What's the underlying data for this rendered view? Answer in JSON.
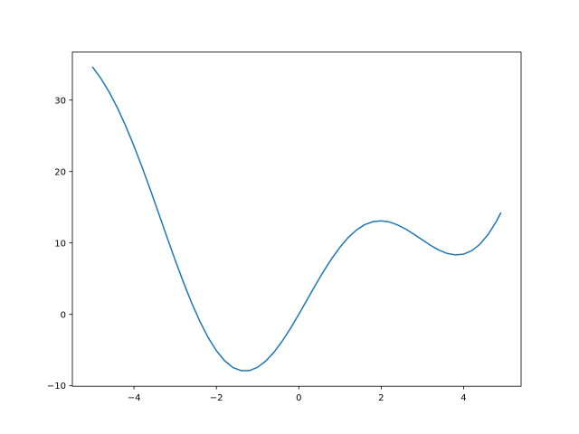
{
  "chart_data": {
    "type": "line",
    "title": "",
    "xlabel": "",
    "ylabel": "",
    "xlim": [
      -5.495,
      5.395
    ],
    "ylim": [
      -10.07,
      36.72
    ],
    "xticks": [
      -4,
      -2,
      0,
      2,
      4
    ],
    "yticks": [
      -10,
      0,
      10,
      20,
      30
    ],
    "xtick_labels": [
      "−4",
      "−2",
      "0",
      "2",
      "4"
    ],
    "ytick_labels": [
      "−10",
      "0",
      "10",
      "20",
      "30"
    ],
    "grid": false,
    "line_color": "#1f77b4",
    "series": [
      {
        "x": [
          -5,
          -4.8,
          -4.6,
          -4.4,
          -4.2,
          -4,
          -3.8,
          -3.6,
          -3.4,
          -3.2,
          -3,
          -2.8,
          -2.6,
          -2.4,
          -2.2,
          -2,
          -1.8,
          -1.6,
          -1.4,
          -1.2,
          -1,
          -0.8,
          -0.6,
          -0.4,
          -0.2,
          0,
          0.2,
          0.4,
          0.6,
          0.8,
          1,
          1.2,
          1.4,
          1.6,
          1.8,
          2,
          2.2,
          2.4,
          2.6,
          2.8,
          3,
          3.2,
          3.4,
          3.6,
          3.8,
          4,
          4.2,
          4.4,
          4.6,
          4.8,
          4.9
        ],
        "y": [
          34.59,
          33.0,
          31.1,
          28.88,
          26.36,
          23.57,
          20.56,
          17.39,
          14.12,
          10.82,
          7.59,
          4.49,
          1.6,
          -1.0,
          -3.25,
          -5.09,
          -6.5,
          -7.44,
          -7.89,
          -7.88,
          -7.41,
          -6.53,
          -5.29,
          -3.73,
          -1.95,
          0,
          2.03,
          4.05,
          6.01,
          7.81,
          9.41,
          10.76,
          11.81,
          12.56,
          12.98,
          13.09,
          12.93,
          12.51,
          11.92,
          11.19,
          10.41,
          9.66,
          9.0,
          8.53,
          8.32,
          8.43,
          8.92,
          9.84,
          11.22,
          13.08,
          14.18
        ]
      }
    ]
  }
}
